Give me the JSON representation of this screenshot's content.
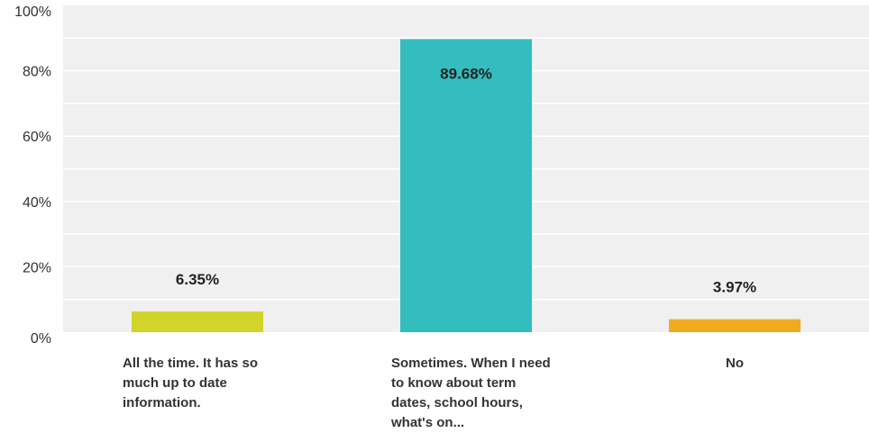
{
  "chart_data": {
    "type": "bar",
    "categories": [
      "All the time. It has so much up to date information.",
      "Sometimes. When I need to know about term dates, school hours, what's on...",
      "No"
    ],
    "values": [
      6.35,
      89.68,
      3.97
    ],
    "value_labels": [
      "6.35%",
      "89.68%",
      "3.97%"
    ],
    "colors": [
      "#d1d42a",
      "#33bdbf",
      "#f0ab1e"
    ],
    "ylim": [
      0,
      100
    ],
    "yticks": [
      0,
      20,
      40,
      60,
      80,
      100
    ],
    "ytick_labels": [
      "0%",
      "20%",
      "40%",
      "60%",
      "80%",
      "100%"
    ],
    "grid": true,
    "title": "",
    "xlabel": "",
    "ylabel": ""
  }
}
